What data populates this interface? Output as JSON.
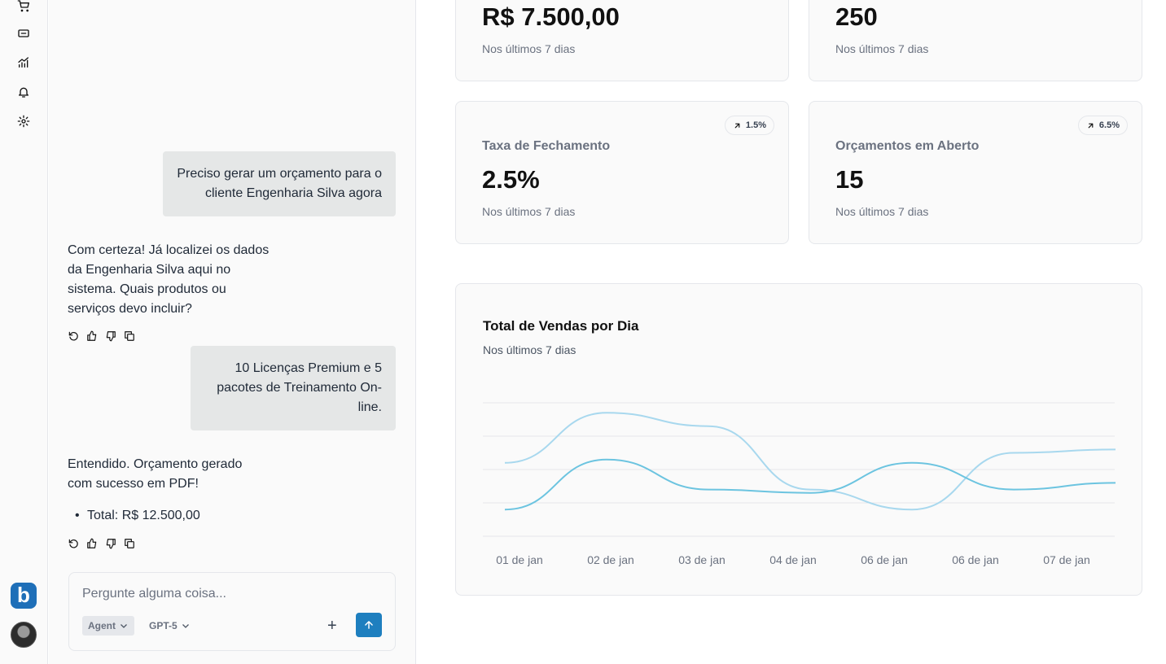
{
  "rail": {
    "icons": [
      "cart-icon",
      "ticket-icon",
      "analytics-icon",
      "bell-icon",
      "settings-icon"
    ],
    "brand_letter": "b"
  },
  "chat": {
    "messages": [
      {
        "role": "user",
        "text": "Preciso gerar um orçamento para o cliente Engenharia Silva agora"
      },
      {
        "role": "assistant",
        "text": "Com certeza! Já localizei os dados da Engenharia Silva aqui no sistema. Quais produtos ou serviços devo incluir?"
      },
      {
        "role": "user",
        "text": "10 Licenças Premium e 5 pacotes de Treinamento On-line."
      },
      {
        "role": "assistant",
        "text": "Entendido. Orçamento gerado com sucesso em PDF!",
        "bullets": [
          "Total: R$ 12.500,00"
        ]
      }
    ],
    "composer": {
      "placeholder": "Pergunte alguma coisa...",
      "mode": "Agent",
      "model": "GPT-5"
    }
  },
  "cards": [
    {
      "title": "",
      "value": "R$ 7.500,00",
      "sub": "Nos últimos 7 dias"
    },
    {
      "title": "",
      "value": "250",
      "sub": "Nos últimos 7 dias"
    },
    {
      "title": "Taxa de Fechamento",
      "value": "2.5%",
      "sub": "Nos últimos 7 dias",
      "badge": "1.5%"
    },
    {
      "title": "Orçamentos em Aberto",
      "value": "15",
      "sub": "Nos últimos 7 dias",
      "badge": "6.5%"
    }
  ],
  "chart_data": {
    "type": "line",
    "title": "Total de Vendas por Dia",
    "subtitle": "Nos últimos 7 dias",
    "categories": [
      "01 de jan",
      "02 de jan",
      "03 de jan",
      "04 de jan",
      "06 de jan",
      "06 de jan",
      "07 de jan"
    ],
    "grid": true,
    "ylim": [
      0,
      4
    ],
    "series": [
      {
        "color": "#a8d8ee",
        "values": [
          2.2,
          3.7,
          3.3,
          1.4,
          0.8,
          2.5,
          2.6
        ]
      },
      {
        "color": "#6cc4e0",
        "values": [
          0.8,
          2.3,
          1.4,
          1.3,
          2.2,
          1.4,
          1.6
        ]
      }
    ]
  }
}
